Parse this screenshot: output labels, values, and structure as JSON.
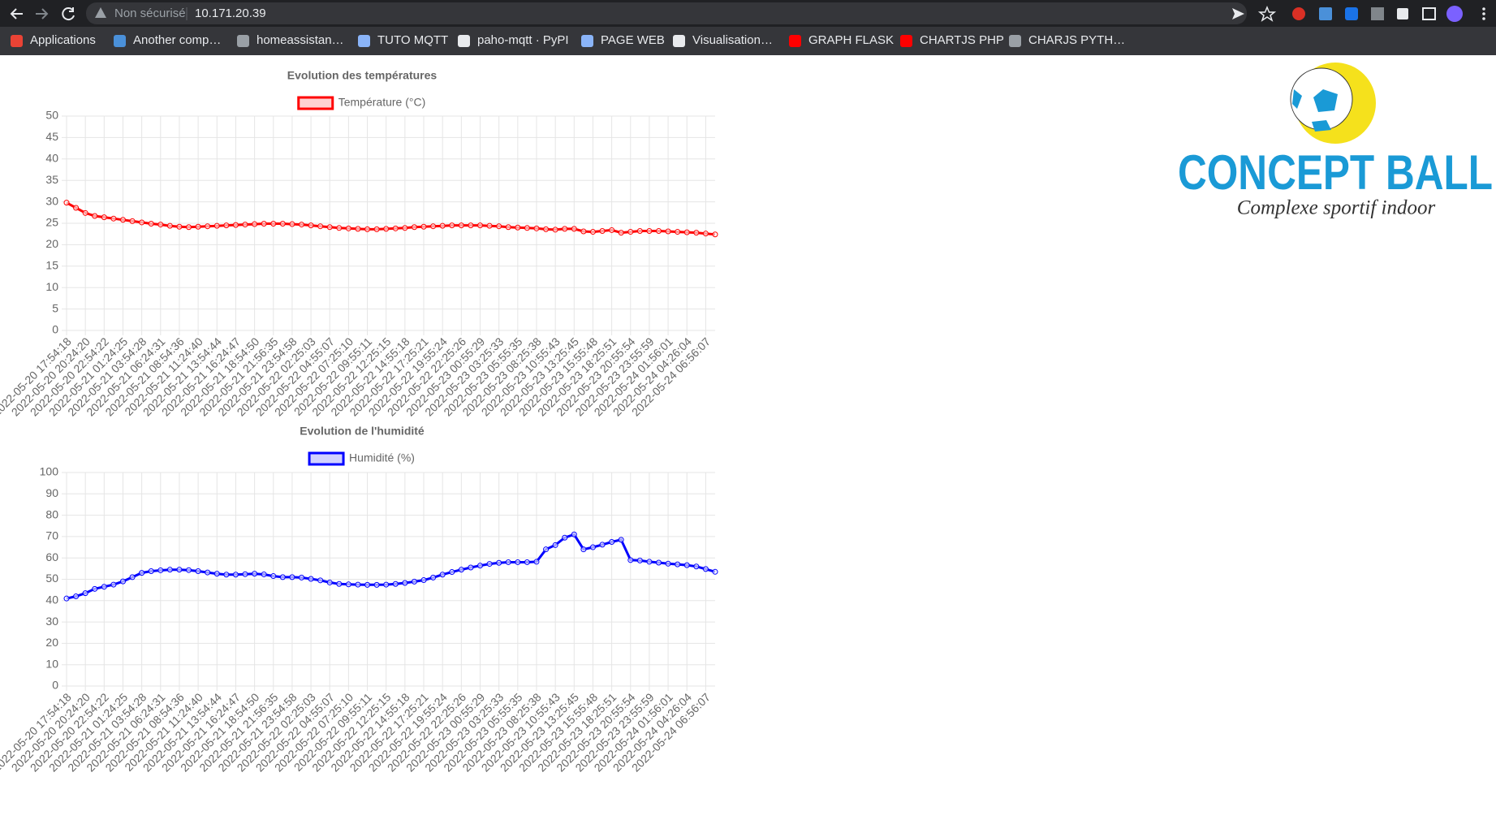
{
  "browser": {
    "security": "Non sécurisé",
    "url": "10.171.20.39",
    "bookmarks": [
      "Applications",
      "Another comp…",
      "homeassistan…",
      "TUTO MQTT",
      "paho-mqtt · PyPI",
      "PAGE WEB",
      "Visualisation…",
      "GRAPH FLASK",
      "CHARTJS PHP",
      "CHARJS PYTH…"
    ]
  },
  "logo": {
    "name": "CONCEPT BALL",
    "tagline": "Complexe sportif indoor"
  },
  "chart_data": [
    {
      "type": "line",
      "title": "Evolution des températures",
      "categories": [
        "2022-05-20 17:54:18",
        null,
        "2022-05-20 20:24:20",
        null,
        "2022-05-20 22:54:22",
        null,
        "2022-05-21 01:24:25",
        null,
        "2022-05-21 03:54:28",
        null,
        "2022-05-21 06:24:31",
        null,
        "2022-05-21 08:54:36",
        null,
        "2022-05-21 11:24:40",
        null,
        "2022-05-21 13:54:44",
        null,
        "2022-05-21 16:24:47",
        null,
        "2022-05-21 18:54:50",
        null,
        "2022-05-21 21:56:35",
        null,
        "2022-05-21 23:54:58",
        null,
        "2022-05-22 02:25:03",
        null,
        "2022-05-22 04:55:07",
        null,
        "2022-05-22 07:25:10",
        null,
        "2022-05-22 09:55:11",
        null,
        "2022-05-22 12:25:15",
        null,
        "2022-05-22 14:55:18",
        null,
        "2022-05-22 17:25:21",
        null,
        "2022-05-22 19:55:24",
        null,
        "2022-05-22 22:25:26",
        null,
        "2022-05-23 00:55:29",
        null,
        "2022-05-23 03:25:33",
        null,
        "2022-05-23 05:55:35",
        null,
        "2022-05-23 08:25:38",
        null,
        "2022-05-23 10:55:43",
        null,
        "2022-05-23 13:25:45",
        null,
        "2022-05-23 15:55:48",
        null,
        "2022-05-23 18:25:51",
        null,
        "2022-05-23 20:55:54",
        null,
        "2022-05-23 23:55:59",
        null,
        "2022-05-24 01:56:01",
        null,
        "2022-05-24 04:26:04",
        null,
        "2022-05-24 06:56:07",
        null
      ],
      "series": [
        {
          "name": "Température (°C)",
          "color": "#ff0000",
          "values": [
            29.8,
            28.6,
            27.4,
            26.7,
            26.4,
            26.1,
            25.8,
            25.5,
            25.2,
            24.9,
            24.7,
            24.4,
            24.2,
            24.1,
            24.2,
            24.3,
            24.4,
            24.5,
            24.6,
            24.7,
            24.8,
            24.9,
            24.9,
            24.9,
            24.8,
            24.7,
            24.5,
            24.3,
            24.1,
            23.9,
            23.8,
            23.7,
            23.6,
            23.6,
            23.7,
            23.8,
            23.9,
            24.1,
            24.2,
            24.3,
            24.4,
            24.5,
            24.5,
            24.5,
            24.5,
            24.4,
            24.3,
            24.1,
            24,
            23.9,
            23.8,
            23.6,
            23.5,
            23.7,
            23.7,
            23.1,
            23,
            23.2,
            23.4,
            22.8,
            23,
            23.2,
            23.2,
            23.2,
            23.1,
            23,
            22.9,
            22.8,
            22.6,
            22.4
          ]
        }
      ],
      "ylim": [
        0,
        50
      ],
      "yticks": [
        0,
        5,
        10,
        15,
        20,
        25,
        30,
        35,
        40,
        45,
        50
      ],
      "grid": true,
      "legend": "top"
    },
    {
      "type": "line",
      "title": "Evolution de l'humidité",
      "categories": [
        "2022-05-20 17:54:18",
        null,
        "2022-05-20 20:24:20",
        null,
        "2022-05-20 22:54:22",
        null,
        "2022-05-21 01:24:25",
        null,
        "2022-05-21 03:54:28",
        null,
        "2022-05-21 06:24:31",
        null,
        "2022-05-21 08:54:36",
        null,
        "2022-05-21 11:24:40",
        null,
        "2022-05-21 13:54:44",
        null,
        "2022-05-21 16:24:47",
        null,
        "2022-05-21 18:54:50",
        null,
        "2022-05-21 21:56:35",
        null,
        "2022-05-21 23:54:58",
        null,
        "2022-05-22 02:25:03",
        null,
        "2022-05-22 04:55:07",
        null,
        "2022-05-22 07:25:10",
        null,
        "2022-05-22 09:55:11",
        null,
        "2022-05-22 12:25:15",
        null,
        "2022-05-22 14:55:18",
        null,
        "2022-05-22 17:25:21",
        null,
        "2022-05-22 19:55:24",
        null,
        "2022-05-22 22:25:26",
        null,
        "2022-05-23 00:55:29",
        null,
        "2022-05-23 03:25:33",
        null,
        "2022-05-23 05:55:35",
        null,
        "2022-05-23 08:25:38",
        null,
        "2022-05-23 10:55:43",
        null,
        "2022-05-23 13:25:45",
        null,
        "2022-05-23 15:55:48",
        null,
        "2022-05-23 18:25:51",
        null,
        "2022-05-23 20:55:54",
        null,
        "2022-05-23 23:55:59",
        null,
        "2022-05-24 01:56:01",
        null,
        "2022-05-24 04:26:04",
        null,
        "2022-05-24 06:56:07",
        null
      ],
      "series": [
        {
          "name": "Humidité (%)",
          "color": "#0000ff",
          "values": [
            41,
            42,
            43.5,
            45.5,
            46.5,
            47.5,
            49,
            51,
            53,
            53.8,
            54.2,
            54.5,
            54.5,
            54.3,
            53.8,
            53.2,
            52.6,
            52.2,
            52.2,
            52.4,
            52.6,
            52.3,
            51.5,
            51,
            51,
            50.8,
            50.2,
            49.5,
            48.5,
            47.8,
            47.6,
            47.5,
            47.4,
            47.4,
            47.5,
            47.8,
            48.3,
            48.9,
            49.6,
            50.8,
            52.2,
            53.4,
            54.5,
            55.5,
            56.4,
            57.2,
            57.7,
            58,
            58,
            58,
            58.2,
            64,
            66,
            69.5,
            71,
            64,
            65,
            66.2,
            67.5,
            68.5,
            59,
            58.8,
            58.2,
            57.8,
            57.3,
            57,
            56.6,
            56,
            54.8,
            53.5
          ]
        }
      ],
      "ylim": [
        0,
        100
      ],
      "yticks": [
        0,
        10,
        20,
        30,
        40,
        50,
        60,
        70,
        80,
        90,
        100
      ],
      "grid": true,
      "legend": "top"
    }
  ]
}
